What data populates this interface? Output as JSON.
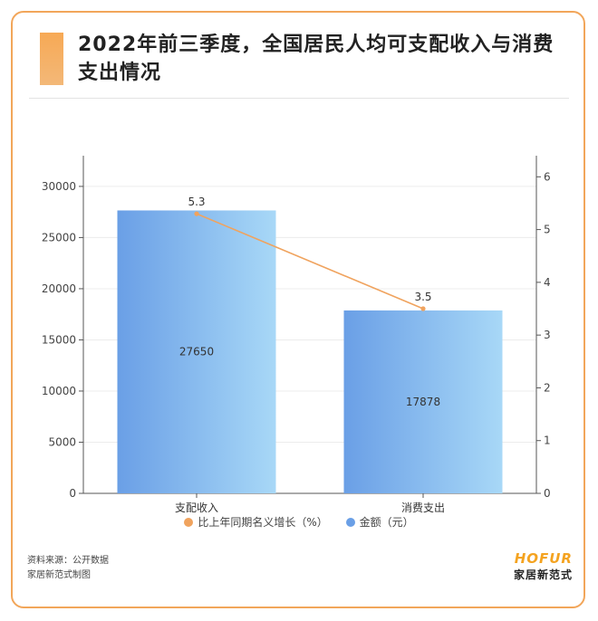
{
  "header": {
    "title": "2022年前三季度，全国居民人均可支配收入与消费支出情况"
  },
  "chart_data": {
    "type": "bar",
    "categories": [
      "支配收入",
      "消费支出"
    ],
    "series": [
      {
        "name": "金额（元）",
        "type": "bar",
        "axis": "left",
        "values": [
          27650,
          17878
        ]
      },
      {
        "name": "比上年同期名义增长（%）",
        "type": "line",
        "axis": "right",
        "values": [
          5.3,
          3.5
        ]
      }
    ],
    "y_left": {
      "ylim": [
        0,
        33000
      ],
      "ticks": [
        0,
        5000,
        10000,
        15000,
        20000,
        25000,
        30000
      ]
    },
    "y_right": {
      "ylim": [
        0,
        6.4
      ],
      "ticks": [
        0,
        1,
        2,
        3,
        4,
        5,
        6
      ]
    },
    "grid": true,
    "legend_position": "bottom"
  },
  "colors": {
    "bar_start": "#6a9fe6",
    "bar_end": "#a8d8f7",
    "line": "#f0a35e",
    "accent": "#f2a65a"
  },
  "footer": {
    "source": "资料来源：公开数据",
    "credit": "家居新范式制图",
    "brand_logo": "HOFUR",
    "brand_name": "家居新范式"
  }
}
